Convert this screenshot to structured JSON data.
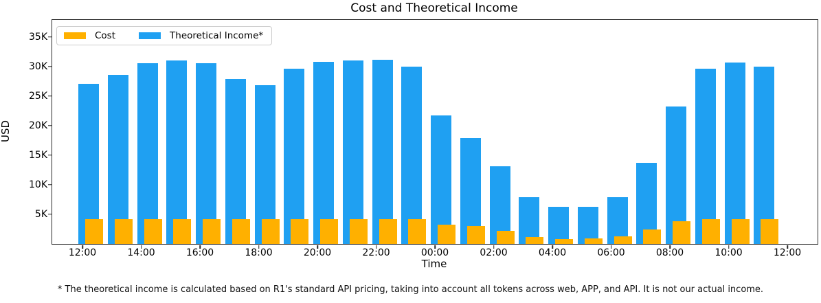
{
  "figure": {
    "title": "Cost and Theoretical Income",
    "xlabel": "Time",
    "ylabel": "USD",
    "footnote": "* The theoretical income is calculated based on R1's standard API pricing, taking into account all tokens across web, APP, and API. It is not our actual income."
  },
  "legend": {
    "items": [
      {
        "label": "Cost",
        "color": "#FFB000"
      },
      {
        "label": "Theoretical Income*",
        "color": "#1FA0F2"
      }
    ]
  },
  "colors": {
    "cost": "#FFB000",
    "income": "#1FA0F2",
    "spine": "#262626",
    "background": "#ffffff"
  },
  "chart_data": {
    "type": "bar",
    "title": "Cost and Theoretical Income",
    "xlabel": "Time",
    "ylabel": "USD",
    "categories": [
      "12:00",
      "13:00",
      "14:00",
      "15:00",
      "16:00",
      "17:00",
      "18:00",
      "19:00",
      "20:00",
      "21:00",
      "22:00",
      "23:00",
      "00:00",
      "01:00",
      "02:00",
      "03:00",
      "04:00",
      "05:00",
      "06:00",
      "07:00",
      "08:00",
      "09:00",
      "10:00",
      "11:00"
    ],
    "series": [
      {
        "name": "Cost",
        "color": "#FFB000",
        "values": [
          4200,
          4200,
          4200,
          4200,
          4200,
          4200,
          4200,
          4200,
          4200,
          4200,
          4200,
          4200,
          3300,
          3000,
          2200,
          1200,
          800,
          900,
          1300,
          2400,
          3800,
          4200,
          4200,
          4200
        ]
      },
      {
        "name": "Theoretical Income*",
        "color": "#1FA0F2",
        "values": [
          27100,
          28600,
          30600,
          31000,
          30600,
          27900,
          26900,
          29700,
          30800,
          31000,
          31200,
          30000,
          21800,
          17900,
          13100,
          7900,
          6300,
          6300,
          7900,
          13700,
          23200,
          29600,
          30700,
          30000
        ]
      }
    ],
    "x_tick_labels": [
      "12:00",
      "14:00",
      "16:00",
      "18:00",
      "20:00",
      "22:00",
      "00:00",
      "02:00",
      "04:00",
      "06:00",
      "08:00",
      "10:00",
      "12:00"
    ],
    "y_ticks": [
      5000,
      10000,
      15000,
      20000,
      25000,
      30000,
      35000
    ],
    "y_tick_labels": [
      "5K",
      "10K",
      "15K",
      "20K",
      "25K",
      "30K",
      "35K"
    ],
    "ylim": [
      0,
      37900
    ],
    "grid": false,
    "legend_position": "upper left",
    "footnote": "* The theoretical income is calculated based on R1's standard API pricing, taking into account all tokens across web, APP, and API. It is not our actual income."
  }
}
